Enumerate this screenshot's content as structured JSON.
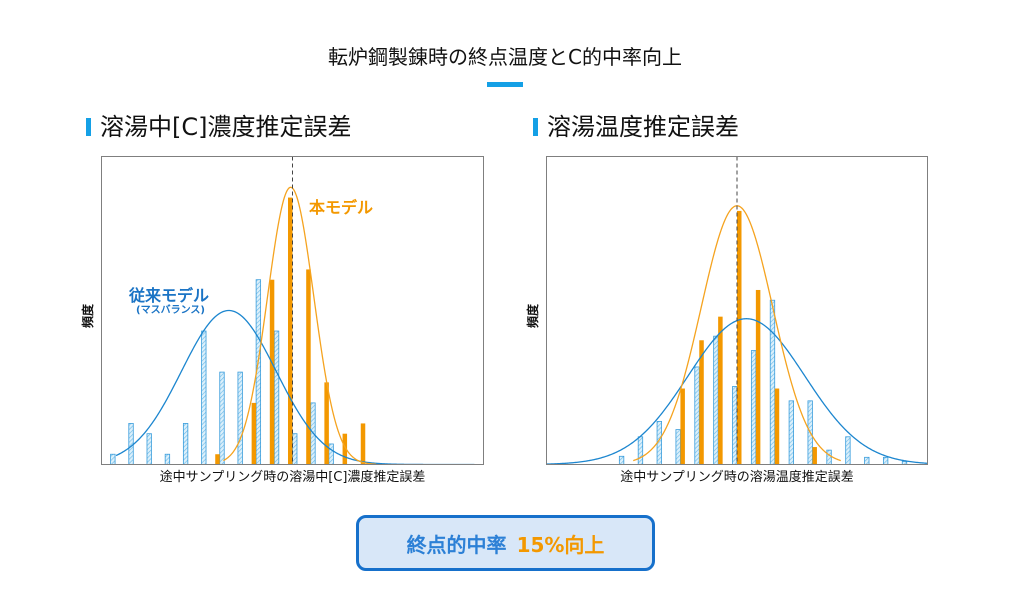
{
  "page": {
    "title": "転炉鋼製錬時の終点温度とC的中率向上"
  },
  "colors": {
    "accent": "#14a0e6",
    "text": "#111111",
    "frame": "#7f7f7f",
    "reference_line": "#444444",
    "conventional_bar_stroke": "#3a9ddc",
    "conventional_bar_fill": "#dcf0fb",
    "conventional_hatch": "#6dbbe9",
    "conventional_curve": "#1c86cf",
    "proposed_bar": "#f39800",
    "proposed_curve": "#f5a31f",
    "annotation_conventional": "#1b74c5",
    "annotation_proposed": "#f39800",
    "result_border": "#1670cb",
    "result_background": "#d8e7f8",
    "result_label": "#2c80d6",
    "result_value": "#f39800"
  },
  "chart_data": [
    {
      "type": "bar",
      "title": "溶湯中[C]濃度推定誤差",
      "xlabel": "途中サンプリング時の溶湯中[C]濃度推定誤差",
      "ylabel": "頻度",
      "xlim": [
        -10.5,
        10.5
      ],
      "ylim": [
        0,
        30
      ],
      "grid": false,
      "reference_x": 0,
      "x": [
        -10,
        -9,
        -8,
        -7,
        -6,
        -5,
        -4,
        -3,
        -2,
        -1,
        0,
        1,
        2,
        3,
        4
      ],
      "conventional": {
        "values": [
          1,
          4,
          3,
          1,
          4,
          13,
          9,
          9,
          18,
          13,
          3,
          6,
          2,
          0,
          0
        ],
        "fit": {
          "mean": -3.5,
          "sd": 2.6,
          "peak": 15,
          "from": -9.7,
          "to": 10
        }
      },
      "proposed": {
        "values": [
          0,
          0,
          0,
          0,
          0,
          0,
          1,
          0,
          6,
          18,
          26,
          19,
          8,
          3,
          4
        ],
        "fit": {
          "mean": -0.1,
          "sd": 1.27,
          "peak": 27,
          "from": -3.8,
          "to": 4.6
        }
      },
      "annotations": {
        "proposed": "本モデル",
        "conventional": "従来モデル",
        "conventional_note": "(マスバランス)"
      }
    },
    {
      "type": "bar",
      "title": "溶湯温度推定誤差",
      "xlabel": "途中サンプリング時の溶湯温度推定誤差",
      "ylabel": "頻度",
      "xlim": [
        -10.1,
        10.1
      ],
      "ylim": [
        0,
        30
      ],
      "grid": false,
      "reference_x": 0,
      "x": [
        -6,
        -5,
        -4,
        -3,
        -2,
        -1,
        0,
        1,
        2,
        3,
        4,
        5,
        6,
        7,
        8,
        9
      ],
      "conventional": {
        "values": [
          0.8,
          2.7,
          4.2,
          3.4,
          9.5,
          12.5,
          7.6,
          11.1,
          16,
          6.2,
          6.2,
          1.4,
          2.7,
          0.7,
          0.7,
          0.3
        ],
        "fit": {
          "mean": 0.5,
          "sd": 3.1,
          "peak": 14.2,
          "from": -10.1,
          "to": 10.1
        }
      },
      "proposed": {
        "values": [
          0,
          0,
          0,
          7.4,
          12.1,
          14.4,
          24.7,
          17,
          7.4,
          0,
          1.7,
          0,
          0,
          0,
          0,
          0
        ],
        "fit": {
          "mean": 0,
          "sd": 1.9,
          "peak": 25.2,
          "from": -5.5,
          "to": 5.5
        }
      }
    }
  ],
  "result": {
    "label": "終点的中率",
    "value": "15%向上"
  }
}
